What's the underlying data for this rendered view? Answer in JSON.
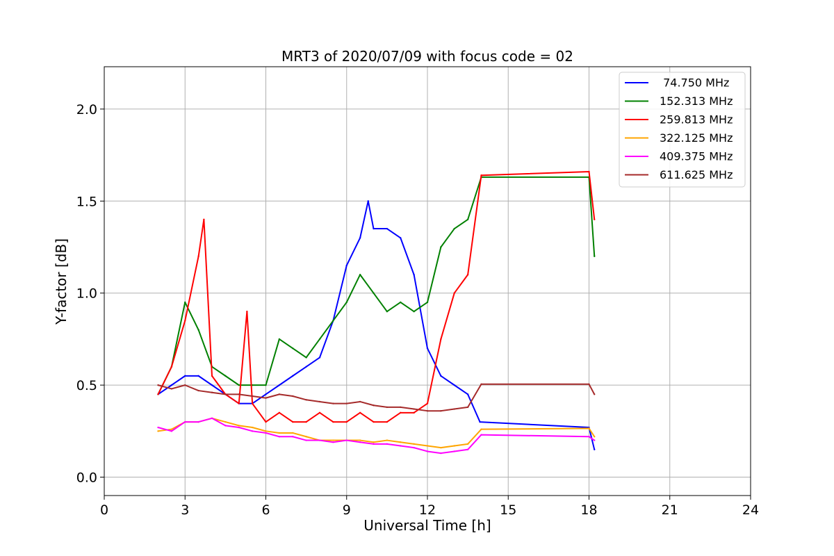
{
  "chart_data": {
    "type": "line",
    "title": "MRT3 of 2020/07/09 with focus code = 02",
    "xlabel": "Universal Time [h]",
    "ylabel": "Y-factor [dB]",
    "xlim": [
      0,
      24
    ],
    "ylim": [
      -0.1,
      2.23
    ],
    "xticks": [
      0,
      3,
      6,
      9,
      12,
      15,
      18,
      21,
      24
    ],
    "xtick_labels": [
      "0",
      "3",
      "6",
      "9",
      "12",
      "15",
      "18",
      "21",
      "24"
    ],
    "yticks": [
      0.0,
      0.5,
      1.0,
      1.5,
      2.0
    ],
    "ytick_labels": [
      "0.0",
      "0.5",
      "1.0",
      "1.5",
      "2.0"
    ],
    "grid": true,
    "legend_position": "top-right",
    "series": [
      {
        "name": " 74.750 MHz",
        "color": "#0000ff",
        "x": [
          2.0,
          2.5,
          3.0,
          3.5,
          4.0,
          4.5,
          5.0,
          5.5,
          6.0,
          6.5,
          7.0,
          7.5,
          8.0,
          8.5,
          9.0,
          9.5,
          9.8,
          10.0,
          10.5,
          11.0,
          11.5,
          12.0,
          12.5,
          13.0,
          13.5,
          13.95,
          18.0,
          18.2
        ],
        "y": [
          0.45,
          0.5,
          0.55,
          0.55,
          0.5,
          0.45,
          0.4,
          0.4,
          0.45,
          0.5,
          0.55,
          0.6,
          0.65,
          0.85,
          1.15,
          1.3,
          1.5,
          1.35,
          1.35,
          1.3,
          1.1,
          0.7,
          0.55,
          0.5,
          0.45,
          0.3,
          0.27,
          0.15
        ]
      },
      {
        "name": "152.313 MHz",
        "color": "#008000",
        "x": [
          2.0,
          2.5,
          3.0,
          3.5,
          4.0,
          4.5,
          5.0,
          5.5,
          6.0,
          6.5,
          7.0,
          7.5,
          8.0,
          8.5,
          9.0,
          9.5,
          10.0,
          10.5,
          11.0,
          11.5,
          12.0,
          12.5,
          13.0,
          13.5,
          14.0,
          18.0,
          18.2
        ],
        "y": [
          0.45,
          0.6,
          0.95,
          0.8,
          0.6,
          0.55,
          0.5,
          0.5,
          0.5,
          0.75,
          0.7,
          0.65,
          0.75,
          0.85,
          0.95,
          1.1,
          1.0,
          0.9,
          0.95,
          0.9,
          0.95,
          1.25,
          1.35,
          1.4,
          1.63,
          1.63,
          1.2
        ]
      },
      {
        "name": "259.813 MHz",
        "color": "#ff0000",
        "x": [
          2.0,
          2.5,
          3.0,
          3.5,
          3.7,
          4.0,
          4.5,
          5.0,
          5.3,
          5.5,
          6.0,
          6.5,
          7.0,
          7.5,
          8.0,
          8.5,
          9.0,
          9.5,
          10.0,
          10.5,
          11.0,
          11.5,
          12.0,
          12.5,
          13.0,
          13.5,
          14.0,
          18.0,
          18.2
        ],
        "y": [
          0.45,
          0.6,
          0.85,
          1.2,
          1.4,
          0.55,
          0.45,
          0.4,
          0.9,
          0.4,
          0.3,
          0.35,
          0.3,
          0.3,
          0.35,
          0.3,
          0.3,
          0.35,
          0.3,
          0.3,
          0.35,
          0.35,
          0.4,
          0.75,
          1.0,
          1.1,
          1.64,
          1.66,
          1.4
        ]
      },
      {
        "name": "322.125 MHz",
        "color": "#ffa500",
        "x": [
          2.0,
          2.5,
          3.0,
          3.5,
          4.0,
          4.5,
          5.0,
          5.5,
          6.0,
          6.5,
          7.0,
          7.5,
          8.0,
          8.5,
          9.0,
          9.5,
          10.0,
          10.5,
          11.0,
          11.5,
          12.0,
          12.5,
          13.0,
          13.5,
          14.0,
          18.0,
          18.2
        ],
        "y": [
          0.25,
          0.26,
          0.3,
          0.3,
          0.32,
          0.3,
          0.28,
          0.27,
          0.25,
          0.24,
          0.24,
          0.22,
          0.2,
          0.2,
          0.2,
          0.2,
          0.19,
          0.2,
          0.19,
          0.18,
          0.17,
          0.16,
          0.17,
          0.18,
          0.26,
          0.265,
          0.22
        ]
      },
      {
        "name": "409.375 MHz",
        "color": "#ff00ff",
        "x": [
          2.0,
          2.5,
          3.0,
          3.5,
          4.0,
          4.5,
          5.0,
          5.5,
          6.0,
          6.5,
          7.0,
          7.5,
          8.0,
          8.5,
          9.0,
          9.5,
          10.0,
          10.5,
          11.0,
          11.5,
          12.0,
          12.5,
          13.0,
          13.5,
          14.0,
          18.0,
          18.2
        ],
        "y": [
          0.27,
          0.25,
          0.3,
          0.3,
          0.32,
          0.28,
          0.27,
          0.25,
          0.24,
          0.22,
          0.22,
          0.2,
          0.2,
          0.19,
          0.2,
          0.19,
          0.18,
          0.18,
          0.17,
          0.16,
          0.14,
          0.13,
          0.14,
          0.15,
          0.23,
          0.22,
          0.2
        ]
      },
      {
        "name": "611.625 MHz",
        "color": "#a52a2a",
        "x": [
          2.0,
          2.5,
          3.0,
          3.5,
          4.0,
          4.5,
          5.0,
          5.5,
          6.0,
          6.5,
          7.0,
          7.5,
          8.0,
          8.5,
          9.0,
          9.5,
          10.0,
          10.5,
          11.0,
          11.5,
          12.0,
          12.5,
          13.0,
          13.5,
          14.0,
          18.0,
          18.2
        ],
        "y": [
          0.5,
          0.48,
          0.5,
          0.47,
          0.46,
          0.45,
          0.45,
          0.44,
          0.43,
          0.45,
          0.44,
          0.42,
          0.41,
          0.4,
          0.4,
          0.41,
          0.39,
          0.38,
          0.38,
          0.37,
          0.36,
          0.36,
          0.37,
          0.38,
          0.505,
          0.505,
          0.45
        ]
      }
    ]
  }
}
